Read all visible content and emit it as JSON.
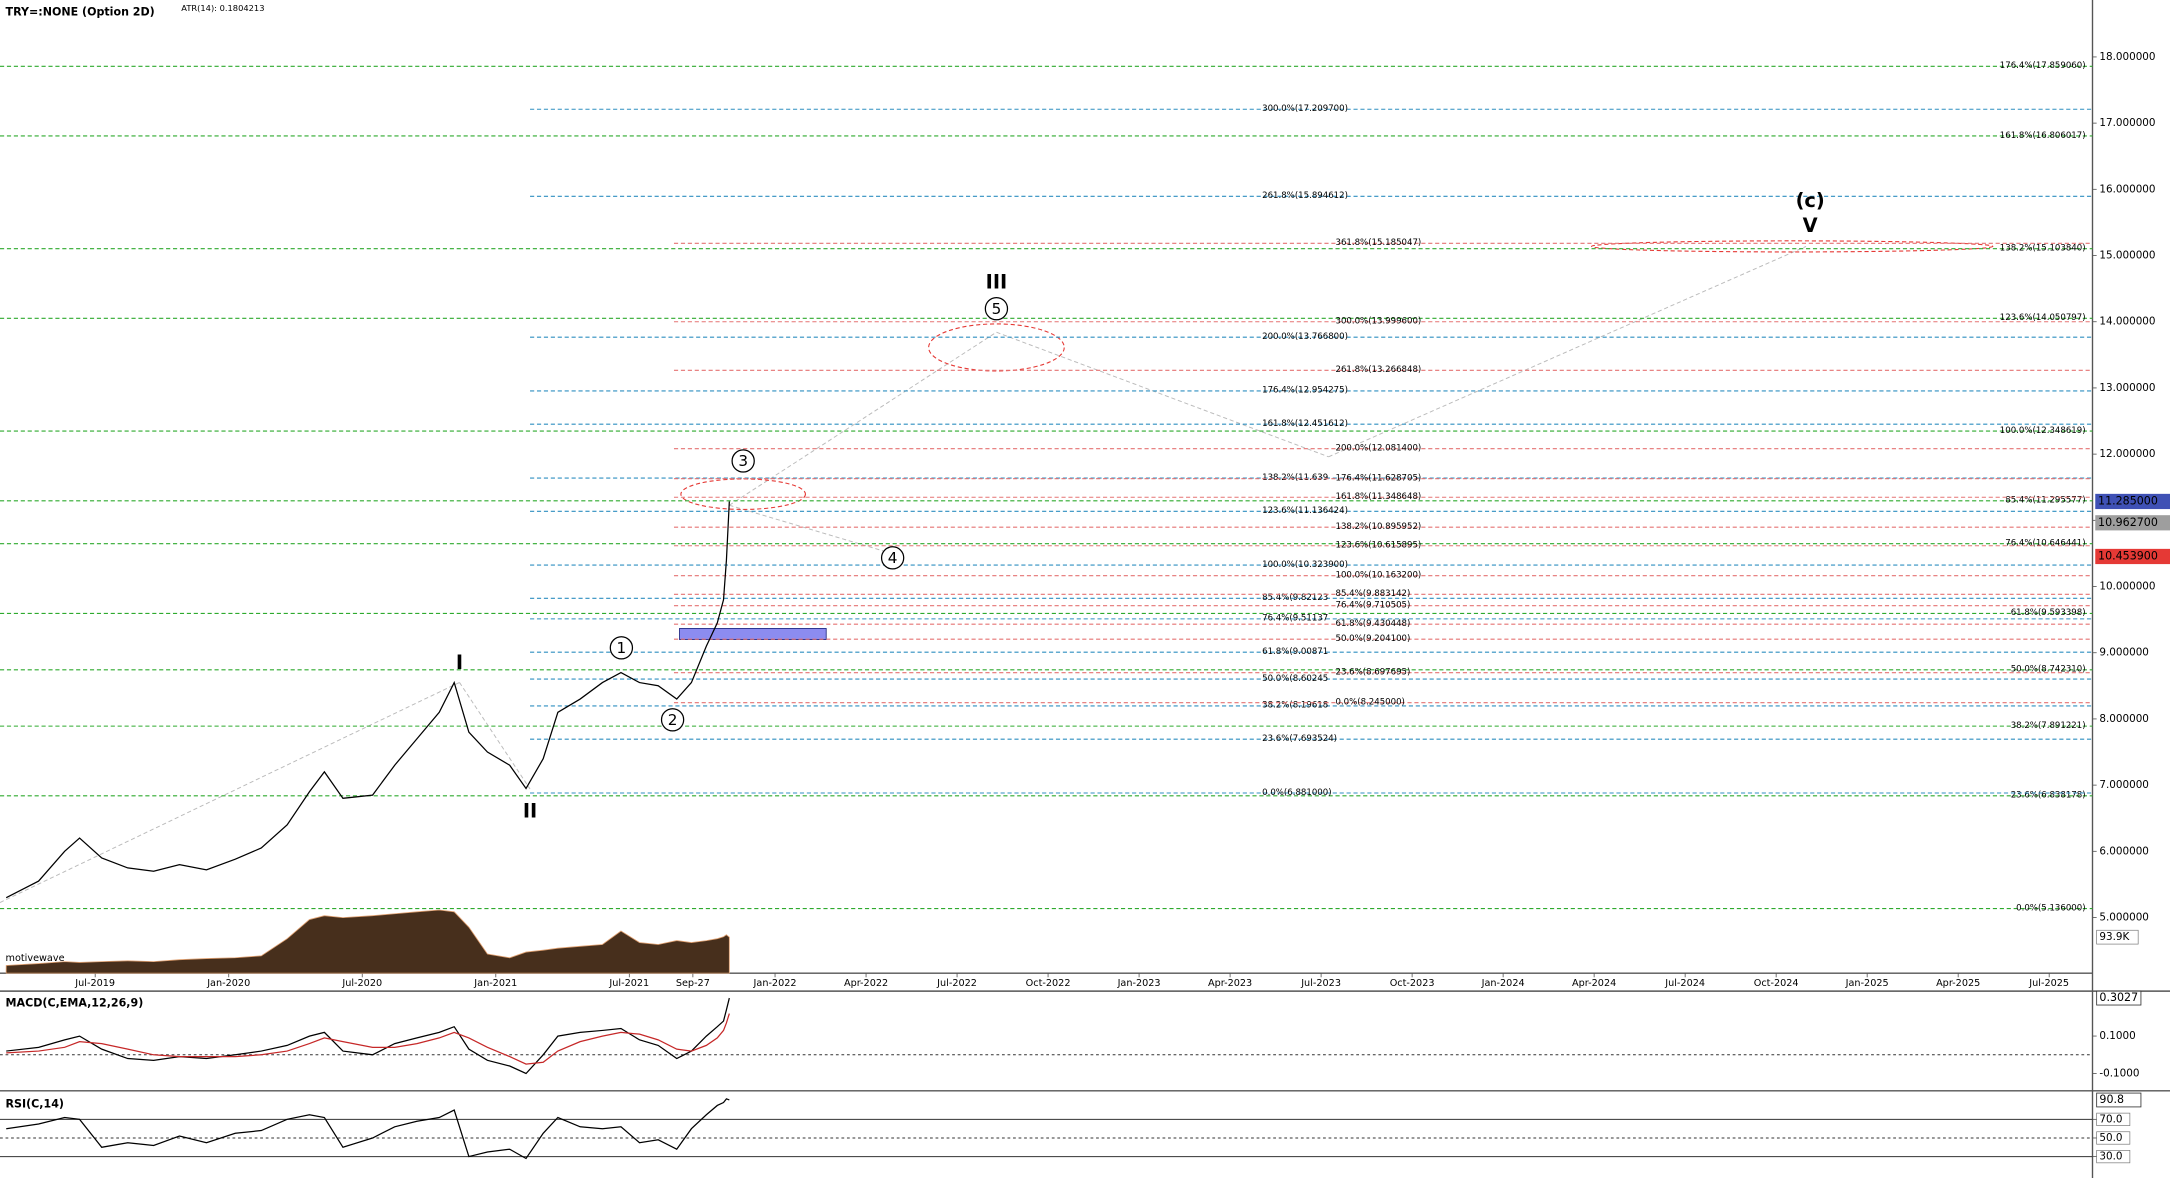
{
  "chart_data": [
    {
      "type": "line",
      "title": "TRY=:NONE (Option 2D)",
      "subtitle": "ATR(14): 0.1804213",
      "watermark": "motivewave",
      "x": [
        "2019-03-01",
        "2019-04-15",
        "2019-05-20",
        "2019-06-10",
        "2019-07-10",
        "2019-08-15",
        "2019-09-20",
        "2019-10-25",
        "2019-12-01",
        "2020-01-10",
        "2020-02-15",
        "2020-03-20",
        "2020-04-20",
        "2020-05-10",
        "2020-06-05",
        "2020-07-15",
        "2020-08-15",
        "2020-09-15",
        "2020-10-15",
        "2020-11-05",
        "2020-11-25",
        "2020-12-20",
        "2021-01-20",
        "2021-02-12",
        "2021-03-05",
        "2021-03-25",
        "2021-04-25",
        "2021-05-25",
        "2021-06-20",
        "2021-07-15",
        "2021-08-10",
        "2021-09-05",
        "2021-09-25",
        "2021-10-15",
        "2021-10-30",
        "2021-11-08",
        "2021-11-12",
        "2021-11-16"
      ],
      "series": [
        {
          "color": "#000000",
          "values": [
            5.3,
            5.55,
            6.0,
            6.2,
            5.9,
            5.75,
            5.7,
            5.8,
            5.72,
            5.88,
            6.05,
            6.4,
            6.9,
            7.2,
            6.8,
            6.85,
            7.3,
            7.7,
            8.1,
            8.55,
            7.8,
            7.5,
            7.3,
            6.95,
            7.4,
            8.1,
            8.3,
            8.55,
            8.7,
            8.55,
            8.5,
            8.3,
            8.55,
            9.1,
            9.45,
            9.8,
            10.4,
            11.285
          ]
        },
        {
          "color": "#3d2410",
          "axis": "y2",
          "values": [
            20,
            25,
            30,
            28,
            30,
            32,
            30,
            35,
            38,
            40,
            45,
            90,
            140,
            150,
            145,
            150,
            155,
            160,
            165,
            160,
            120,
            50,
            40,
            55,
            60,
            65,
            70,
            75,
            110,
            80,
            75,
            85,
            80,
            85,
            90,
            95,
            100,
            93.9
          ]
        }
      ],
      "xlim": [
        "2019-02-23",
        "2025-08-14"
      ],
      "xticks": [
        {
          "value": "2019-07-01",
          "label": "Jul-2019"
        },
        {
          "value": "2020-01-01",
          "label": "Jan-2020"
        },
        {
          "value": "2020-07-01",
          "label": "Jul-2020"
        },
        {
          "value": "2021-01-01",
          "label": "Jan-2021"
        },
        {
          "value": "2021-07-01",
          "label": "Jul-2021"
        },
        {
          "value": "2021-09-27",
          "label": "Sep-27"
        },
        {
          "value": "2022-01-01",
          "label": "Jan-2022"
        },
        {
          "value": "2022-04-01",
          "label": "Apr-2022"
        },
        {
          "value": "2022-07-01",
          "label": "Jul-2022"
        },
        {
          "value": "2022-10-01",
          "label": "Oct-2022"
        },
        {
          "value": "2023-01-01",
          "label": "Jan-2023"
        },
        {
          "value": "2023-04-01",
          "label": "Apr-2023"
        },
        {
          "value": "2023-07-01",
          "label": "Jul-2023"
        },
        {
          "value": "2023-10-01",
          "label": "Oct-2023"
        },
        {
          "value": "2024-01-01",
          "label": "Jan-2024"
        },
        {
          "value": "2024-04-01",
          "label": "Apr-2024"
        },
        {
          "value": "2024-07-01",
          "label": "Jul-2024"
        },
        {
          "value": "2024-10-01",
          "label": "Oct-2024"
        },
        {
          "value": "2025-01-01",
          "label": "Jan-2025"
        },
        {
          "value": "2025-04-01",
          "label": "Apr-2025"
        },
        {
          "value": "2025-07-01",
          "label": "Jul-2025"
        }
      ],
      "ylim": [
        4.16,
        18.86
      ],
      "yticks": [
        {
          "value": 18,
          "label": "18.000000"
        },
        {
          "value": 17,
          "label": "17.000000"
        },
        {
          "value": 16,
          "label": "16.000000"
        },
        {
          "value": 15,
          "label": "15.000000"
        },
        {
          "value": 14,
          "label": "14.000000"
        },
        {
          "value": 13,
          "label": "13.000000"
        },
        {
          "value": 12,
          "label": "12.000000"
        },
        {
          "value": 11,
          "label": "11.000000"
        },
        {
          "value": 10,
          "label": "10.000000"
        },
        {
          "value": 9,
          "label": "9.000000"
        },
        {
          "value": 8,
          "label": "8.000000"
        },
        {
          "value": 7,
          "label": "7.000000"
        },
        {
          "value": 6,
          "label": "6.000000"
        },
        {
          "value": 5,
          "label": "5.000000"
        }
      ],
      "y2lim": [
        0,
        300
      ],
      "y2ticks": [
        {
          "value": 93.9,
          "label": "93.9K"
        }
      ],
      "price_tags": [
        {
          "value": 11.285,
          "label": "11.285000",
          "color": "#3f51b5"
        },
        {
          "value": 10.9627,
          "label": "10.962700",
          "color": "#9e9e9e"
        },
        {
          "value": 10.4539,
          "label": "10.453900",
          "color": "#e53935"
        }
      ],
      "fib_levels": [
        {
          "color": "#2eaa2e",
          "levels": [
            {
              "value": 17.85906,
              "label": "176.4%(17.859060)"
            },
            {
              "value": 16.806017,
              "label": "161.8%(16.806017)"
            },
            {
              "value": 15.10384,
              "label": "138.2%(15.103840)"
            },
            {
              "value": 14.050797,
              "label": "123.6%(14.050797)"
            },
            {
              "value": 12.348619,
              "label": "100.0%(12.348619)"
            },
            {
              "value": 11.295577,
              "label": "85.4%(11.295577)"
            },
            {
              "value": 10.646441,
              "label": "76.4%(10.646441)"
            },
            {
              "value": 9.593398,
              "label": "61.8%(9.593398)"
            },
            {
              "value": 8.74231,
              "label": "50.0%(8.742310)"
            },
            {
              "value": 7.891221,
              "label": "38.2%(7.891221)"
            },
            {
              "value": 6.838178,
              "label": "23.6%(6.838178)"
            },
            {
              "value": 5.136,
              "label": "0.0%(5.136000)"
            }
          ]
        },
        {
          "color": "#2f8fc0",
          "levels": [
            {
              "value": 17.2097,
              "label": "300.0%(17.209700)"
            },
            {
              "value": 15.894612,
              "label": "261.8%(15.894612)"
            },
            {
              "value": 13.7668,
              "label": "200.0%(13.766800)"
            },
            {
              "value": 12.954275,
              "label": "176.4%(12.954275)"
            },
            {
              "value": 12.451612,
              "label": "161.8%(12.451612)"
            },
            {
              "value": 11.639,
              "label": "138.2%(11.639"
            },
            {
              "value": 11.136424,
              "label": "123.6%(11.136424)"
            },
            {
              "value": 10.3239,
              "label": "100.0%(10.323900)"
            },
            {
              "value": 9.82123,
              "label": "85.4%(9.82123"
            },
            {
              "value": 9.51137,
              "label": "76.4%(9.51137"
            },
            {
              "value": 9.00871,
              "label": "61.8%(9.00871"
            },
            {
              "value": 8.60245,
              "label": "50.0%(8.60245"
            },
            {
              "value": 8.19618,
              "label": "38.2%(8.19618"
            },
            {
              "value": 7.693524,
              "label": "23.6%(7.693524)"
            },
            {
              "value": 6.881,
              "label": "0.0%(6.881000)"
            }
          ]
        },
        {
          "color": "#e57373",
          "levels": [
            {
              "value": 15.185047,
              "label": "361.8%(15.185047)"
            },
            {
              "value": 13.9996,
              "label": "300.0%(13.999600)"
            },
            {
              "value": 13.266848,
              "label": "261.8%(13.266848)"
            },
            {
              "value": 12.0814,
              "label": "200.0%(12.081400)"
            },
            {
              "value": 11.628705,
              "label": "176.4%(11.628705)"
            },
            {
              "value": 11.348648,
              "label": "161.8%(11.348648)"
            },
            {
              "value": 10.895952,
              "label": "138.2%(10.895952)"
            },
            {
              "value": 10.615895,
              "label": "123.6%(10.615895)"
            },
            {
              "value": 10.1632,
              "label": "100.0%(10.163200)"
            },
            {
              "value": 9.883142,
              "label": "85.4%(9.883142)"
            },
            {
              "value": 9.710505,
              "label": "76.4%(9.710505)"
            },
            {
              "value": 9.430448,
              "label": "61.8%(9.430448)"
            },
            {
              "value": 9.2041,
              "label": "50.0%(9.204100)"
            },
            {
              "value": 8.697695,
              "label": "23.6%(8.697695)"
            },
            {
              "value": 8.245,
              "label": "0.0%(8.245000)"
            }
          ]
        }
      ],
      "wave_labels": [
        {
          "text": "I",
          "color": "#1a237e"
        },
        {
          "text": "II",
          "color": "#1a237e"
        },
        {
          "text": "III",
          "color": "#1a237e"
        },
        {
          "text": "1",
          "color": "#000000"
        },
        {
          "text": "2",
          "color": "#000000"
        },
        {
          "text": "3",
          "color": "#000000"
        },
        {
          "text": "4",
          "color": "#000000"
        },
        {
          "text": "5",
          "color": "#000000"
        },
        {
          "text": "(c)",
          "color": "#4a148c"
        },
        {
          "text": "V",
          "color": "#1a237e"
        }
      ]
    },
    {
      "type": "line",
      "title": "MACD(C,EMA,12,26,9)",
      "x": [
        "2019-03-01",
        "2019-04-15",
        "2019-05-20",
        "2019-06-10",
        "2019-07-10",
        "2019-08-15",
        "2019-09-20",
        "2019-10-25",
        "2019-12-01",
        "2020-01-10",
        "2020-02-15",
        "2020-03-20",
        "2020-04-20",
        "2020-05-10",
        "2020-06-05",
        "2020-07-15",
        "2020-08-15",
        "2020-09-15",
        "2020-10-15",
        "2020-11-05",
        "2020-11-25",
        "2020-12-20",
        "2021-01-20",
        "2021-02-12",
        "2021-03-05",
        "2021-03-25",
        "2021-04-25",
        "2021-05-25",
        "2021-06-20",
        "2021-07-15",
        "2021-08-10",
        "2021-09-05",
        "2021-09-25",
        "2021-10-15",
        "2021-10-30",
        "2021-11-08",
        "2021-11-12",
        "2021-11-16"
      ],
      "series": [
        {
          "color": "#000000",
          "values": [
            0.02,
            0.04,
            0.08,
            0.1,
            0.03,
            -0.02,
            -0.03,
            -0.01,
            -0.02,
            0.0,
            0.02,
            0.05,
            0.1,
            0.12,
            0.02,
            0.0,
            0.06,
            0.09,
            0.12,
            0.15,
            0.03,
            -0.03,
            -0.06,
            -0.1,
            0.0,
            0.1,
            0.12,
            0.13,
            0.14,
            0.08,
            0.05,
            -0.02,
            0.02,
            0.1,
            0.15,
            0.18,
            0.24,
            0.3027
          ]
        },
        {
          "color": "#c62828",
          "values": [
            0.01,
            0.02,
            0.04,
            0.07,
            0.06,
            0.03,
            0.0,
            -0.01,
            -0.01,
            -0.01,
            0.0,
            0.02,
            0.06,
            0.09,
            0.07,
            0.04,
            0.04,
            0.06,
            0.09,
            0.12,
            0.09,
            0.04,
            -0.01,
            -0.05,
            -0.04,
            0.02,
            0.07,
            0.1,
            0.12,
            0.11,
            0.08,
            0.03,
            0.02,
            0.05,
            0.09,
            0.13,
            0.17,
            0.22
          ]
        }
      ],
      "ylim": [
        -0.185,
        0.34
      ],
      "yticks": [
        {
          "value": 0.1,
          "label": "0.1000"
        },
        {
          "value": -0.1,
          "label": "-0.1000"
        }
      ],
      "current": 0.3027
    },
    {
      "type": "line",
      "title": "RSI(C,14)",
      "x": [
        "2019-03-01",
        "2019-04-15",
        "2019-05-20",
        "2019-06-10",
        "2019-07-10",
        "2019-08-15",
        "2019-09-20",
        "2019-10-25",
        "2019-12-01",
        "2020-01-10",
        "2020-02-15",
        "2020-03-20",
        "2020-04-20",
        "2020-05-10",
        "2020-06-05",
        "2020-07-15",
        "2020-08-15",
        "2020-09-15",
        "2020-10-15",
        "2020-11-05",
        "2020-11-25",
        "2020-12-20",
        "2021-01-20",
        "2021-02-12",
        "2021-03-05",
        "2021-03-25",
        "2021-04-25",
        "2021-05-25",
        "2021-06-20",
        "2021-07-15",
        "2021-08-10",
        "2021-09-05",
        "2021-09-25",
        "2021-10-15",
        "2021-10-30",
        "2021-11-08",
        "2021-11-12",
        "2021-11-16"
      ],
      "series": [
        {
          "color": "#000000",
          "values": [
            60,
            65,
            72,
            70,
            40,
            45,
            42,
            52,
            45,
            55,
            58,
            70,
            75,
            72,
            40,
            50,
            62,
            68,
            72,
            80,
            30,
            35,
            38,
            28,
            55,
            72,
            62,
            60,
            62,
            45,
            48,
            38,
            60,
            75,
            85,
            88,
            92,
            90.8
          ]
        }
      ],
      "ylim": [
        8.5,
        99.2
      ],
      "yticks": [
        {
          "value": 70,
          "label": "70.0"
        },
        {
          "value": 50,
          "label": "50.0"
        },
        {
          "value": 30,
          "label": "30.0"
        }
      ],
      "current": 90.8
    }
  ]
}
